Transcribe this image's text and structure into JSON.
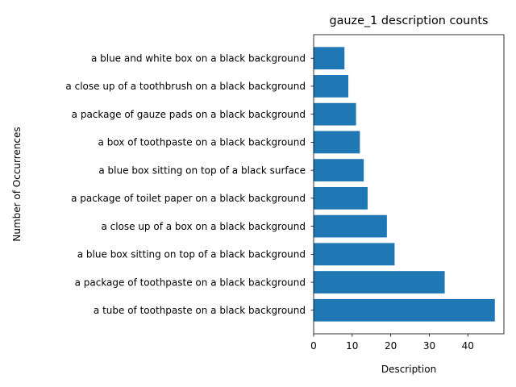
{
  "chart_data": {
    "type": "bar",
    "orientation": "horizontal",
    "title": "gauze_1 description counts",
    "xlabel": "Description",
    "ylabel": "Number of Occurrences",
    "categories": [
      "a tube of toothpaste on a black background",
      "a package of toothpaste on a black background",
      "a blue box sitting on top of a black background",
      "a close up of a box on a black background",
      "a package of toilet paper on a black background",
      "a blue box sitting on top of a black surface",
      "a box of toothpaste on a black background",
      "a package of gauze pads on a black background",
      "a close up of a toothbrush on a black background",
      "a blue and white box on a black background"
    ],
    "values": [
      47,
      34,
      21,
      19,
      14,
      13,
      12,
      11,
      9,
      8
    ],
    "xlim": [
      0,
      49.35
    ],
    "xticks": [
      0,
      10,
      20,
      30,
      40
    ],
    "bar_color": "#1f77b4",
    "grid": false,
    "legend": "none"
  }
}
